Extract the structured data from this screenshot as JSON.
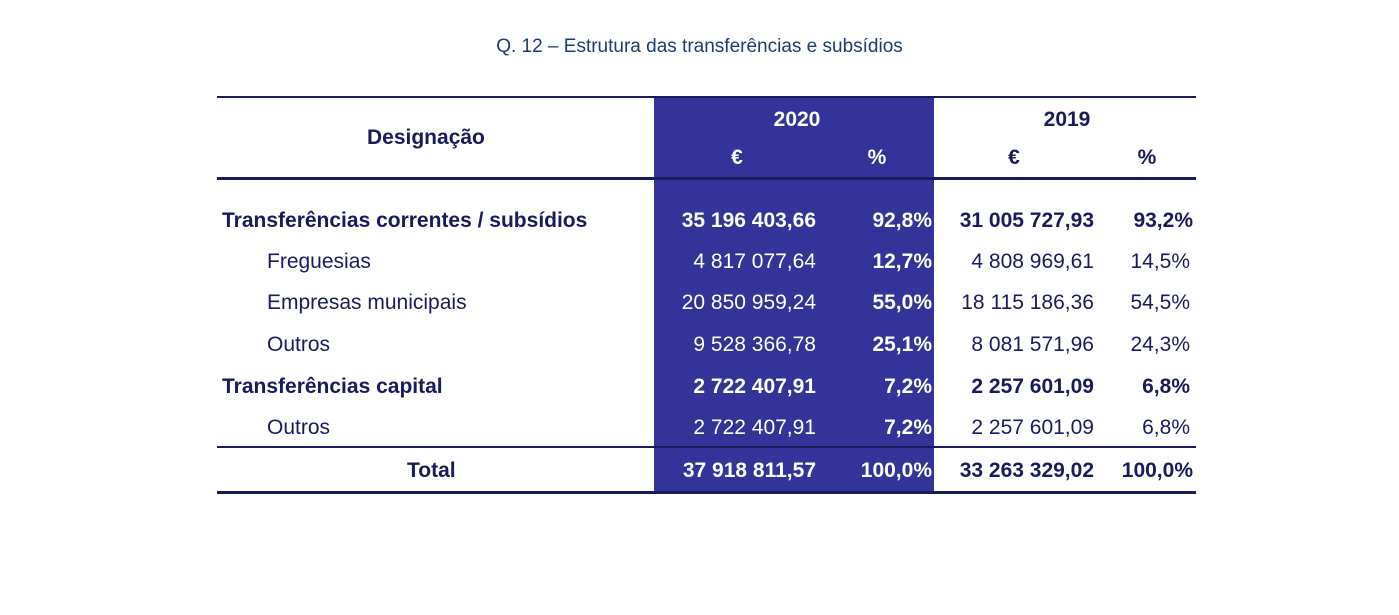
{
  "title": "Q. 12 – Estrutura das transferências e subsídios",
  "header": {
    "designacao": "Designação",
    "year_2020": "2020",
    "year_2019": "2019",
    "eur_2020": "€",
    "pct_2020": "%",
    "eur_2019": "€",
    "pct_2019": "%"
  },
  "rows": [
    {
      "label": "Transferências correntes / subsídios",
      "eur_2020": "35 196 403,66",
      "pct_2020": "92,8%",
      "eur_2019": "31 005 727,93",
      "pct_2019": "93,2%"
    },
    {
      "label": "Freguesias",
      "eur_2020": "4 817 077,64",
      "pct_2020": "12,7%",
      "eur_2019": "4 808 969,61",
      "pct_2019": "14,5%"
    },
    {
      "label": "Empresas municipais",
      "eur_2020": "20 850 959,24",
      "pct_2020": "55,0%",
      "eur_2019": "18 115 186,36",
      "pct_2019": "54,5%"
    },
    {
      "label": "Outros",
      "eur_2020": "9 528 366,78",
      "pct_2020": "25,1%",
      "eur_2019": "8 081 571,96",
      "pct_2019": "24,3%"
    },
    {
      "label": "Transferências capital",
      "eur_2020": "2 722 407,91",
      "pct_2020": "7,2%",
      "eur_2019": "2 257 601,09",
      "pct_2019": "6,8%"
    },
    {
      "label": "Outros",
      "eur_2020": "2 722 407,91",
      "pct_2020": "7,2%",
      "eur_2019": "2 257 601,09",
      "pct_2019": "6,8%"
    }
  ],
  "total": {
    "label": "Total",
    "eur_2020": "37 918 811,57",
    "pct_2020": "100,0%",
    "eur_2019": "33 263 329,02",
    "pct_2019": "100,0%"
  },
  "colors": {
    "highlight": "#333399",
    "text": "#1a1a5e",
    "title": "#1f3a7a"
  }
}
